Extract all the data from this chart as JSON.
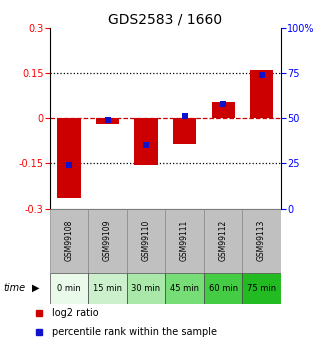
{
  "title": "GDS2583 / 1660",
  "samples": [
    "GSM99108",
    "GSM99109",
    "GSM99110",
    "GSM99111",
    "GSM99112",
    "GSM99113"
  ],
  "time_labels": [
    "0 min",
    "15 min",
    "30 min",
    "45 min",
    "60 min",
    "75 min"
  ],
  "log2_ratio": [
    -0.265,
    -0.02,
    -0.155,
    -0.085,
    0.055,
    0.16
  ],
  "percentile_rank": [
    24,
    49,
    35,
    51,
    58,
    74
  ],
  "ylim_left": [
    -0.3,
    0.3
  ],
  "ylim_right": [
    0,
    100
  ],
  "yticks_left": [
    -0.3,
    -0.15,
    0,
    0.15,
    0.3
  ],
  "yticks_right": [
    0,
    25,
    50,
    75,
    100
  ],
  "bar_color": "#cc0000",
  "dot_color": "#1111cc",
  "hline_color": "#cc0000",
  "dotline_color": "black",
  "bg_color": "#ffffff",
  "bar_width": 0.6,
  "time_colors": [
    "#eafaea",
    "#ccf0cc",
    "#aae8aa",
    "#77dd77",
    "#44cc44",
    "#22bb22"
  ],
  "sample_bg": "#c0c0c0",
  "title_fontsize": 10,
  "tick_fontsize": 7,
  "label_fontsize": 6,
  "legend_fontsize": 7,
  "time_fontsize": 7
}
